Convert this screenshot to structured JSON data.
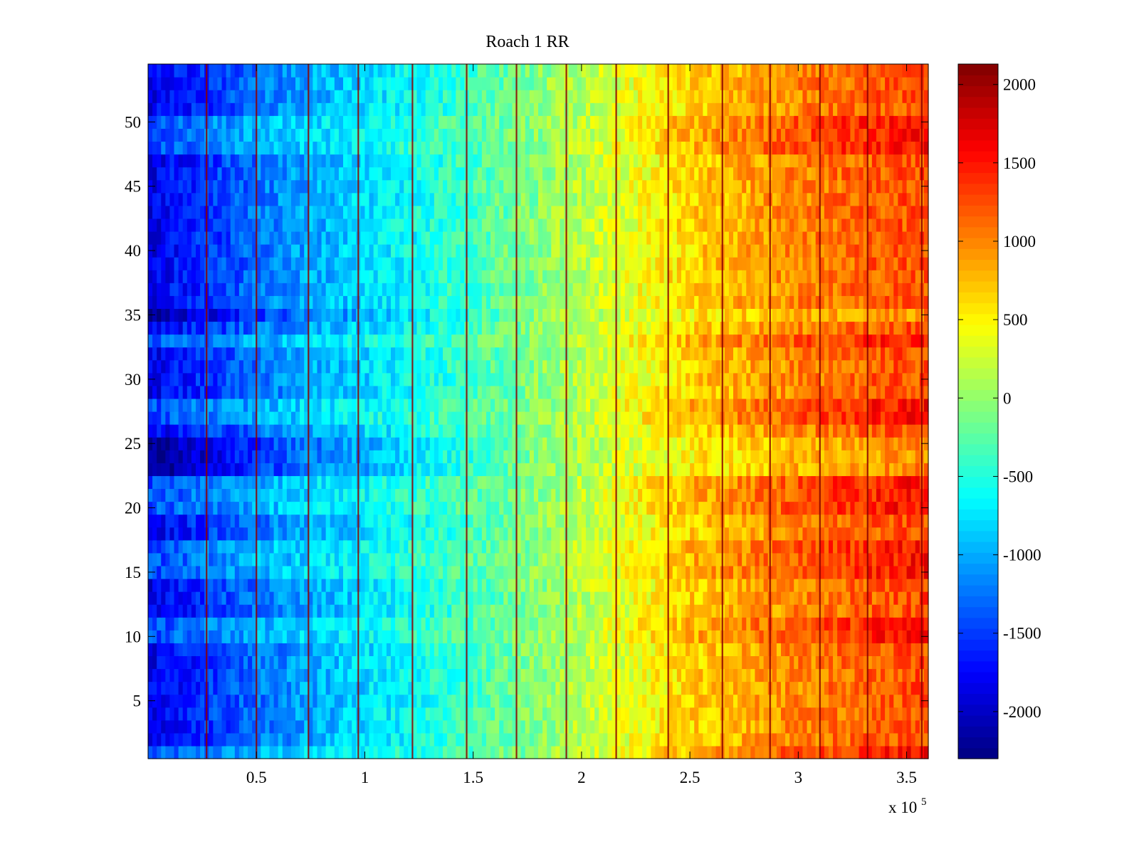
{
  "chart_data": {
    "type": "heatmap",
    "title": "Roach 1 RR",
    "xlabel": "",
    "ylabel": "",
    "x_multiplier_label": "x 10",
    "x_multiplier_exponent": "5",
    "xlim": [
      0,
      3.6
    ],
    "ylim": [
      0.5,
      54.5
    ],
    "xticks": [
      0.5,
      1,
      1.5,
      2,
      2.5,
      3,
      3.5
    ],
    "xtick_labels": [
      "0.5",
      "1",
      "1.5",
      "2",
      "2.5",
      "3",
      "3.5"
    ],
    "yticks": [
      5,
      10,
      15,
      20,
      25,
      30,
      35,
      40,
      45,
      50
    ],
    "ytick_labels": [
      "5",
      "10",
      "15",
      "20",
      "25",
      "30",
      "35",
      "40",
      "45",
      "50"
    ],
    "colorbar": {
      "colormap": "jet",
      "clim": [
        -2300,
        2130
      ],
      "ticks": [
        -2000,
        -1500,
        -1000,
        -500,
        0,
        500,
        1000,
        1500,
        2000
      ],
      "tick_labels": [
        "-2000",
        "-1500",
        "-1000",
        "-500",
        "0",
        "500",
        "1000",
        "1500",
        "2000"
      ]
    },
    "trend": {
      "description_x_units": "x10^5",
      "x_points": [
        0.0,
        0.3,
        0.6,
        1.0,
        1.5,
        2.0,
        2.5,
        3.0,
        3.4,
        3.6
      ],
      "mean_values": [
        -1850,
        -1500,
        -1150,
        -800,
        -350,
        150,
        650,
        1000,
        1200,
        1250
      ]
    },
    "vertical_stripes_x": [
      0.27,
      0.5,
      0.74,
      0.97,
      1.22,
      1.47,
      1.7,
      1.93,
      2.16,
      2.4,
      2.65,
      2.87,
      3.1,
      3.32,
      3.57
    ],
    "darker_rows_y": [
      1,
      10,
      11,
      15,
      16,
      17,
      20,
      21,
      22,
      27,
      28,
      33,
      48,
      49,
      50
    ],
    "lighter_rows_y": [
      23,
      24,
      25,
      35
    ]
  },
  "colors": {
    "background": "#ffffff",
    "axis": "#000000"
  }
}
